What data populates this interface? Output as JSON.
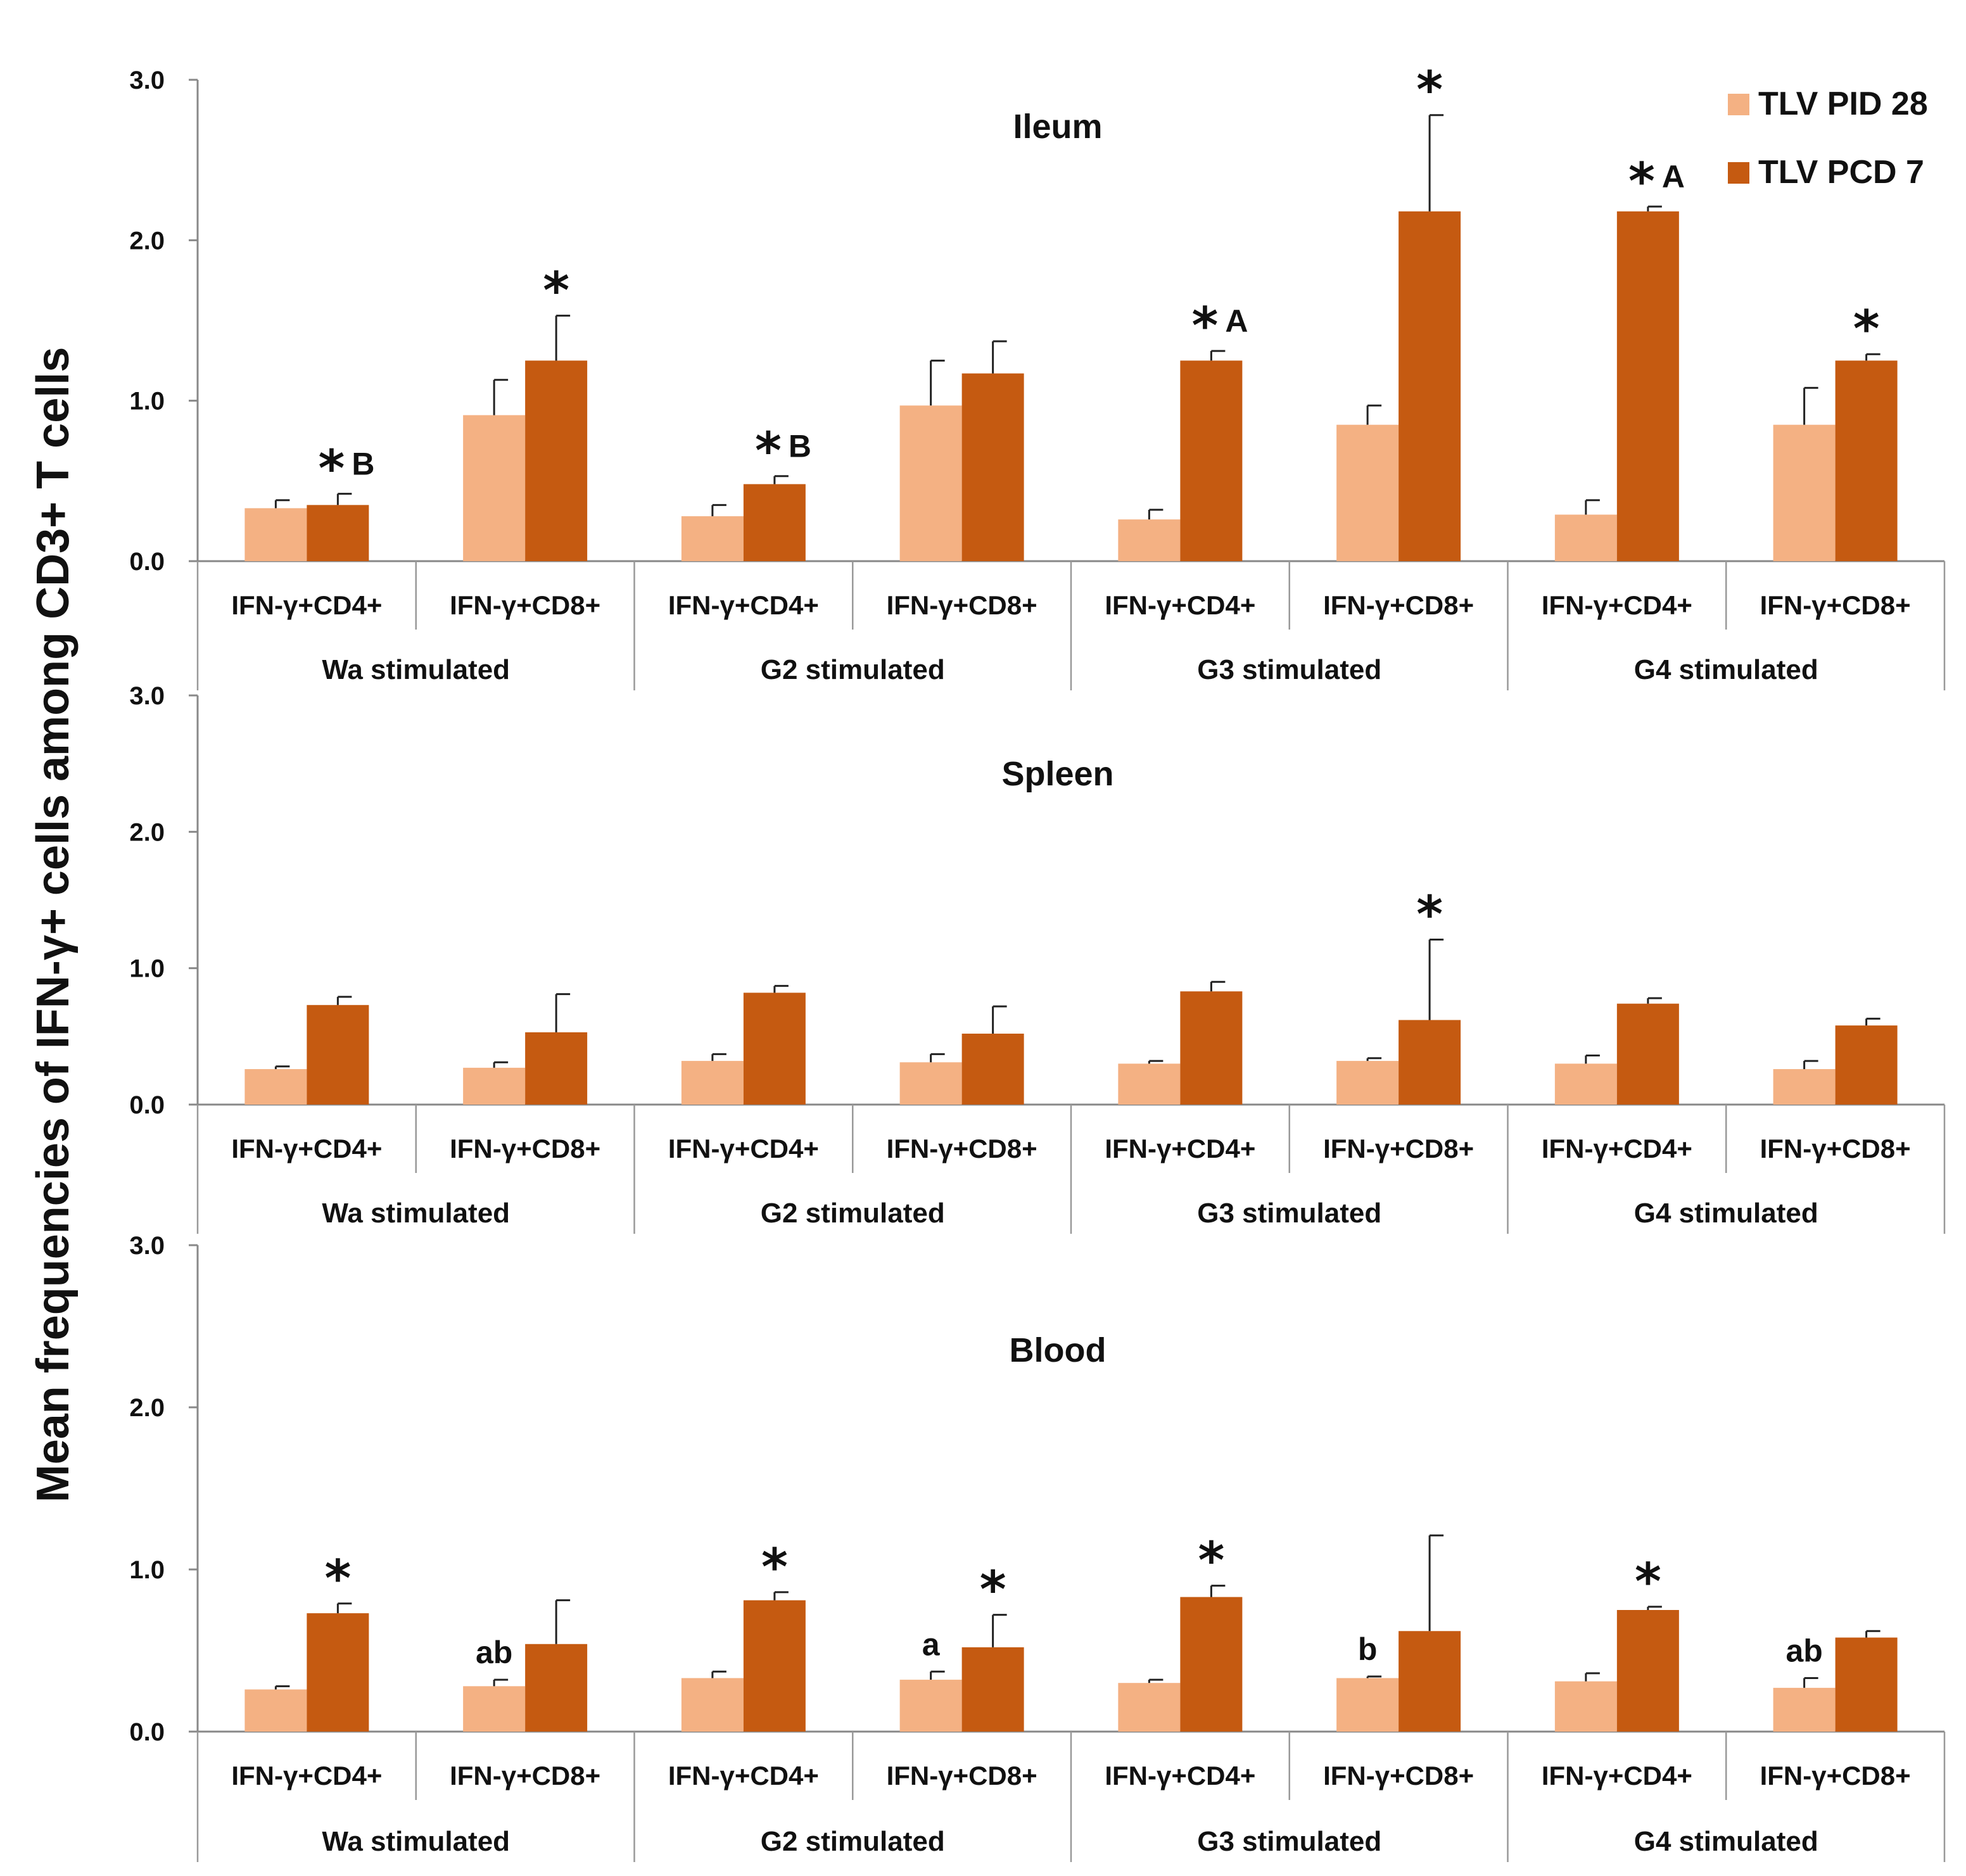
{
  "chart_data": {
    "type": "bar",
    "ylabel": "Mean frequencies of IFN-γ+ cells among CD3+ T cells",
    "ylim": [
      0,
      3.0
    ],
    "yticks": [
      "0.0",
      "1.0",
      "2.0",
      "3.0"
    ],
    "categories": [
      "IFN-γ+CD4+",
      "IFN-γ+CD8+",
      "IFN-γ+CD4+",
      "IFN-γ+CD8+",
      "IFN-γ+CD4+",
      "IFN-γ+CD8+",
      "IFN-γ+CD4+",
      "IFN-γ+CD8+"
    ],
    "groups": [
      "Wa stimulated",
      "G2 stimulated",
      "G3 stimulated",
      "G4 stimulated"
    ],
    "legend": {
      "position": "top-right",
      "items": [
        {
          "name": "TLV PID 28",
          "color": "#F4B183"
        },
        {
          "name": "TLV PCD 7",
          "color": "#C55A11"
        }
      ]
    },
    "panels": [
      {
        "title": "Ileum",
        "series": [
          {
            "name": "TLV PID 28",
            "values": [
              0.33,
              0.91,
              0.28,
              0.97,
              0.26,
              0.85,
              0.29,
              0.85
            ],
            "errors": [
              0.05,
              0.22,
              0.07,
              0.28,
              0.06,
              0.12,
              0.09,
              0.23
            ]
          },
          {
            "name": "TLV PCD 7",
            "values": [
              0.35,
              1.25,
              0.48,
              1.17,
              1.25,
              2.18,
              2.18,
              1.25
            ],
            "errors": [
              0.07,
              0.28,
              0.05,
              0.2,
              0.06,
              0.6,
              0.03,
              0.04
            ]
          }
        ],
        "annotations": [
          {
            "bar": 0,
            "series": 1,
            "star": "*",
            "letter": "B"
          },
          {
            "bar": 1,
            "series": 1,
            "star": "*",
            "letter": ""
          },
          {
            "bar": 2,
            "series": 1,
            "star": "*",
            "letter": "B"
          },
          {
            "bar": 4,
            "series": 1,
            "star": "*",
            "letter": "A"
          },
          {
            "bar": 5,
            "series": 1,
            "star": "*",
            "letter": ""
          },
          {
            "bar": 6,
            "series": 1,
            "star": "*",
            "letter": "A"
          },
          {
            "bar": 7,
            "series": 1,
            "star": "*",
            "letter": ""
          }
        ]
      },
      {
        "title": "Spleen",
        "series": [
          {
            "name": "TLV PID 28",
            "values": [
              0.26,
              0.27,
              0.32,
              0.31,
              0.3,
              0.32,
              0.3,
              0.26
            ],
            "errors": [
              0.02,
              0.04,
              0.05,
              0.06,
              0.02,
              0.02,
              0.06,
              0.06
            ]
          },
          {
            "name": "TLV PCD 7",
            "values": [
              0.73,
              0.53,
              0.82,
              0.52,
              0.83,
              0.62,
              0.74,
              0.58
            ],
            "errors": [
              0.06,
              0.28,
              0.05,
              0.2,
              0.07,
              0.59,
              0.04,
              0.05
            ]
          }
        ],
        "annotations": [
          {
            "bar": 5,
            "series": 1,
            "star": "*",
            "letter": ""
          }
        ]
      },
      {
        "title": "Blood",
        "series": [
          {
            "name": "TLV PID 28",
            "values": [
              0.26,
              0.28,
              0.33,
              0.32,
              0.3,
              0.33,
              0.31,
              0.27
            ],
            "errors": [
              0.02,
              0.04,
              0.04,
              0.05,
              0.02,
              0.01,
              0.05,
              0.06
            ]
          },
          {
            "name": "TLV PCD 7",
            "values": [
              0.73,
              0.54,
              0.81,
              0.52,
              0.83,
              0.62,
              0.75,
              0.58
            ],
            "errors": [
              0.06,
              0.27,
              0.05,
              0.2,
              0.07,
              0.59,
              0.02,
              0.04
            ]
          }
        ],
        "annotations": [
          {
            "bar": 0,
            "series": 1,
            "star": "*",
            "letter": ""
          },
          {
            "bar": 1,
            "series": 0,
            "star": "",
            "letter": "ab"
          },
          {
            "bar": 2,
            "series": 1,
            "star": "*",
            "letter": ""
          },
          {
            "bar": 3,
            "series": 0,
            "star": "",
            "letter": "a"
          },
          {
            "bar": 3,
            "series": 1,
            "star": "*",
            "letter": ""
          },
          {
            "bar": 4,
            "series": 1,
            "star": "*",
            "letter": ""
          },
          {
            "bar": 5,
            "series": 0,
            "star": "",
            "letter": "b"
          },
          {
            "bar": 6,
            "series": 1,
            "star": "*",
            "letter": ""
          },
          {
            "bar": 7,
            "series": 0,
            "star": "",
            "letter": "ab"
          }
        ]
      }
    ]
  }
}
